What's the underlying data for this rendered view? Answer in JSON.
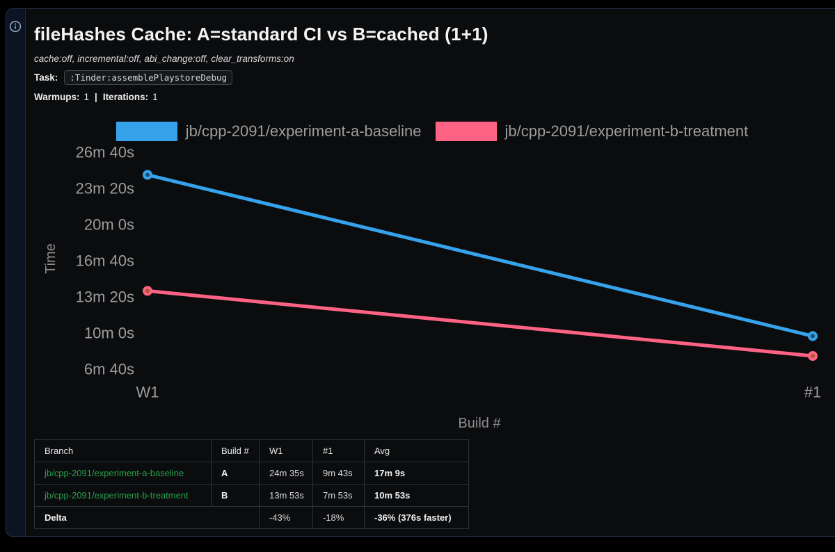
{
  "sidebar": {
    "info_icon": "info-circle",
    "icon_color": "#8ca6c6"
  },
  "header": {
    "title": "fileHashes Cache: A=standard CI vs B=cached (1+1)",
    "subtitle": "cache:off, incremental:off, abi_change:off, clear_transforms:on",
    "task_label": "Task:",
    "task_value": ":Tinder:assemblePlaystoreDebug",
    "warmups_label": "Warmups:",
    "warmups_value": "1",
    "separator": "|",
    "iterations_label": "Iterations:",
    "iterations_value": "1"
  },
  "chart_data": {
    "type": "line",
    "title": "",
    "xlabel": "Build #",
    "ylabel": "Time",
    "x_categories": [
      "W1",
      "#1"
    ],
    "y_ticks": [
      {
        "label": "26m 40s",
        "seconds": 1600
      },
      {
        "label": "23m 20s",
        "seconds": 1400
      },
      {
        "label": "20m 0s",
        "seconds": 1200
      },
      {
        "label": "16m 40s",
        "seconds": 1000
      },
      {
        "label": "13m 20s",
        "seconds": 800
      },
      {
        "label": "10m 0s",
        "seconds": 600
      },
      {
        "label": "6m 40s",
        "seconds": 400
      }
    ],
    "ylim_seconds": [
      330,
      1670
    ],
    "grid": false,
    "legend_position": "top",
    "background": "#000000",
    "series": [
      {
        "name": "jb/cpp-2091/experiment-a-baseline",
        "color": "#36a2eb",
        "point_fill": "#1c4d74",
        "values_seconds": [
          1475,
          583
        ],
        "values_labels": [
          "24m 35s",
          "9m 43s"
        ]
      },
      {
        "name": "jb/cpp-2091/experiment-b-treatment",
        "color": "#ff6384",
        "point_fill": "#a85a32",
        "values_seconds": [
          833,
          473
        ],
        "values_labels": [
          "13m 53s",
          "7m 53s"
        ]
      }
    ]
  },
  "table": {
    "headers": [
      "Branch",
      "Build #",
      "W1",
      "#1",
      "Avg"
    ],
    "rows": [
      {
        "branch": "jb/cpp-2091/experiment-a-baseline",
        "build": "A",
        "w1": "24m 35s",
        "n1": "9m 43s",
        "avg": "17m 9s"
      },
      {
        "branch": "jb/cpp-2091/experiment-b-treatment",
        "build": "B",
        "w1": "13m 53s",
        "n1": "7m 53s",
        "avg": "10m 53s"
      }
    ],
    "delta_row": {
      "label": "Delta",
      "w1": "-43%",
      "n1": "-18%",
      "avg": "-36% (376s faster)"
    }
  },
  "colors": {
    "link_green": "#26a148",
    "series_blue": "#36a2eb",
    "series_pink": "#ff6384",
    "muted_text": "#9d9d9d"
  }
}
